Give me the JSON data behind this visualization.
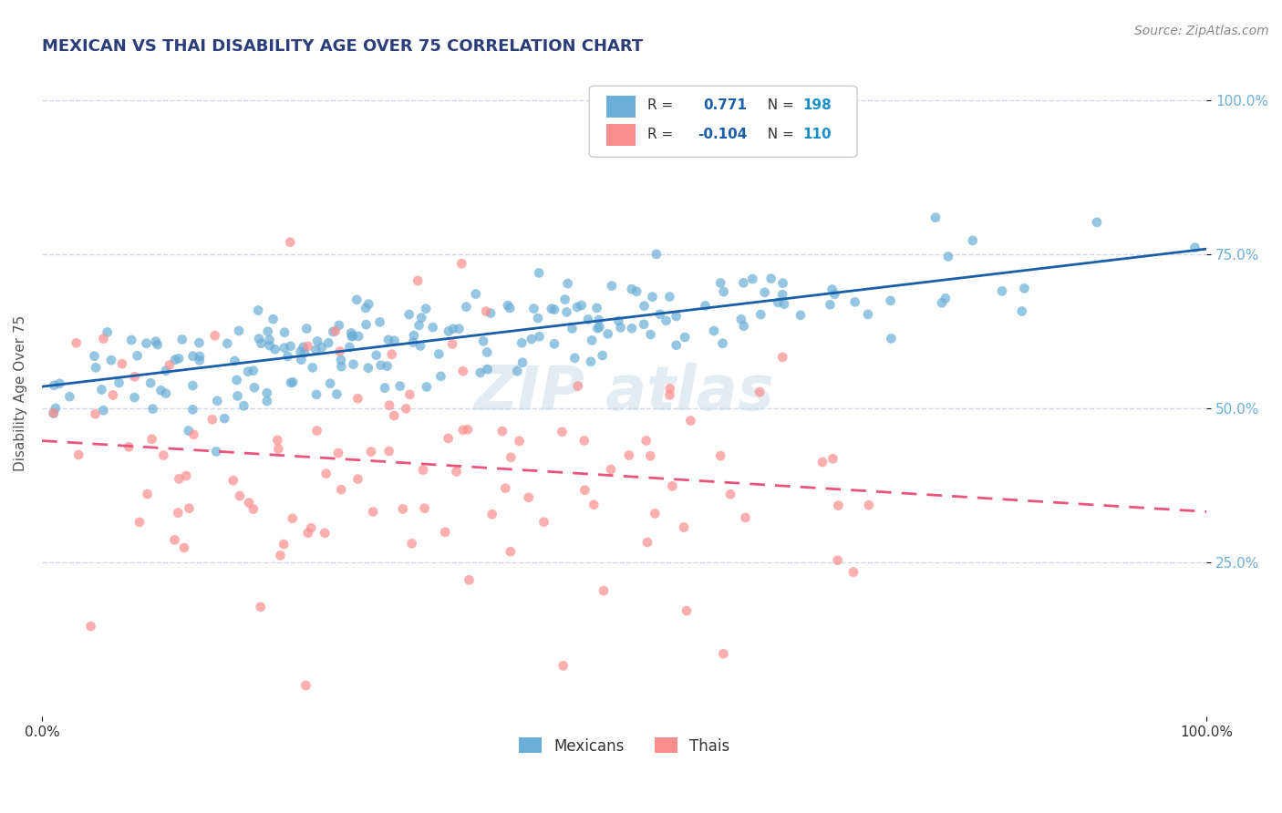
{
  "title": "MEXICAN VS THAI DISABILITY AGE OVER 75 CORRELATION CHART",
  "source_text": "Source: ZipAtlas.com",
  "xlabel": "",
  "ylabel": "Disability Age Over 75",
  "xlim": [
    0.0,
    1.0
  ],
  "ylim": [
    0.0,
    1.05
  ],
  "x_tick_labels": [
    "0.0%",
    "100.0%"
  ],
  "y_tick_labels": [
    "25.0%",
    "50.0%",
    "75.0%",
    "100.0%"
  ],
  "legend_labels": [
    "Mexicans",
    "Thais"
  ],
  "mexican_color": "#6baed6",
  "thai_color": "#fc8d8d",
  "mexican_R": 0.771,
  "mexican_N": 198,
  "thai_R": -0.104,
  "thai_N": 110,
  "mexican_line_color": "#1a5ea8",
  "thai_line_color": "#e8547a",
  "watermark_color": "#c8d8e8",
  "background_color": "#ffffff",
  "grid_color": "#d0d8e8",
  "title_color": "#2c3e7a",
  "legend_R_color": "#1a5ea8",
  "legend_N_color": "#1a8fc8"
}
